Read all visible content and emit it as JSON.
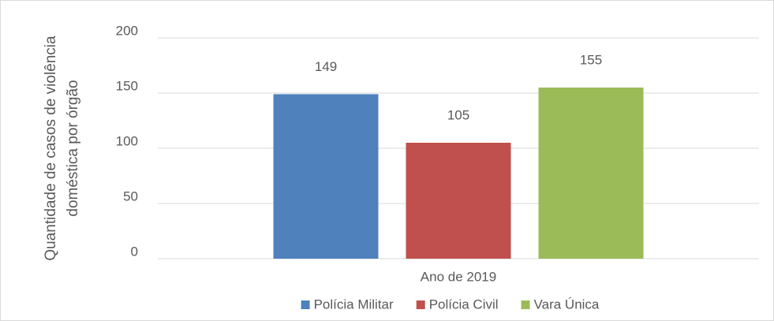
{
  "chart_data": {
    "type": "bar",
    "y_label": "Quantidade de casos de violência doméstica por órgão",
    "x_label": "Ano de 2019",
    "categories": [
      "Ano de 2019"
    ],
    "series": [
      {
        "name": "Polícia Militar",
        "color": "#4f81bd",
        "values": [
          149
        ]
      },
      {
        "name": "Polícia Civil",
        "color": "#c0504d",
        "values": [
          105
        ]
      },
      {
        "name": "Vara Única",
        "color": "#9bbb59",
        "values": [
          155
        ]
      }
    ],
    "ylim": [
      0,
      200
    ],
    "yticks": [
      0,
      50,
      100,
      150,
      200
    ],
    "grid": true,
    "legend": "bottom"
  }
}
